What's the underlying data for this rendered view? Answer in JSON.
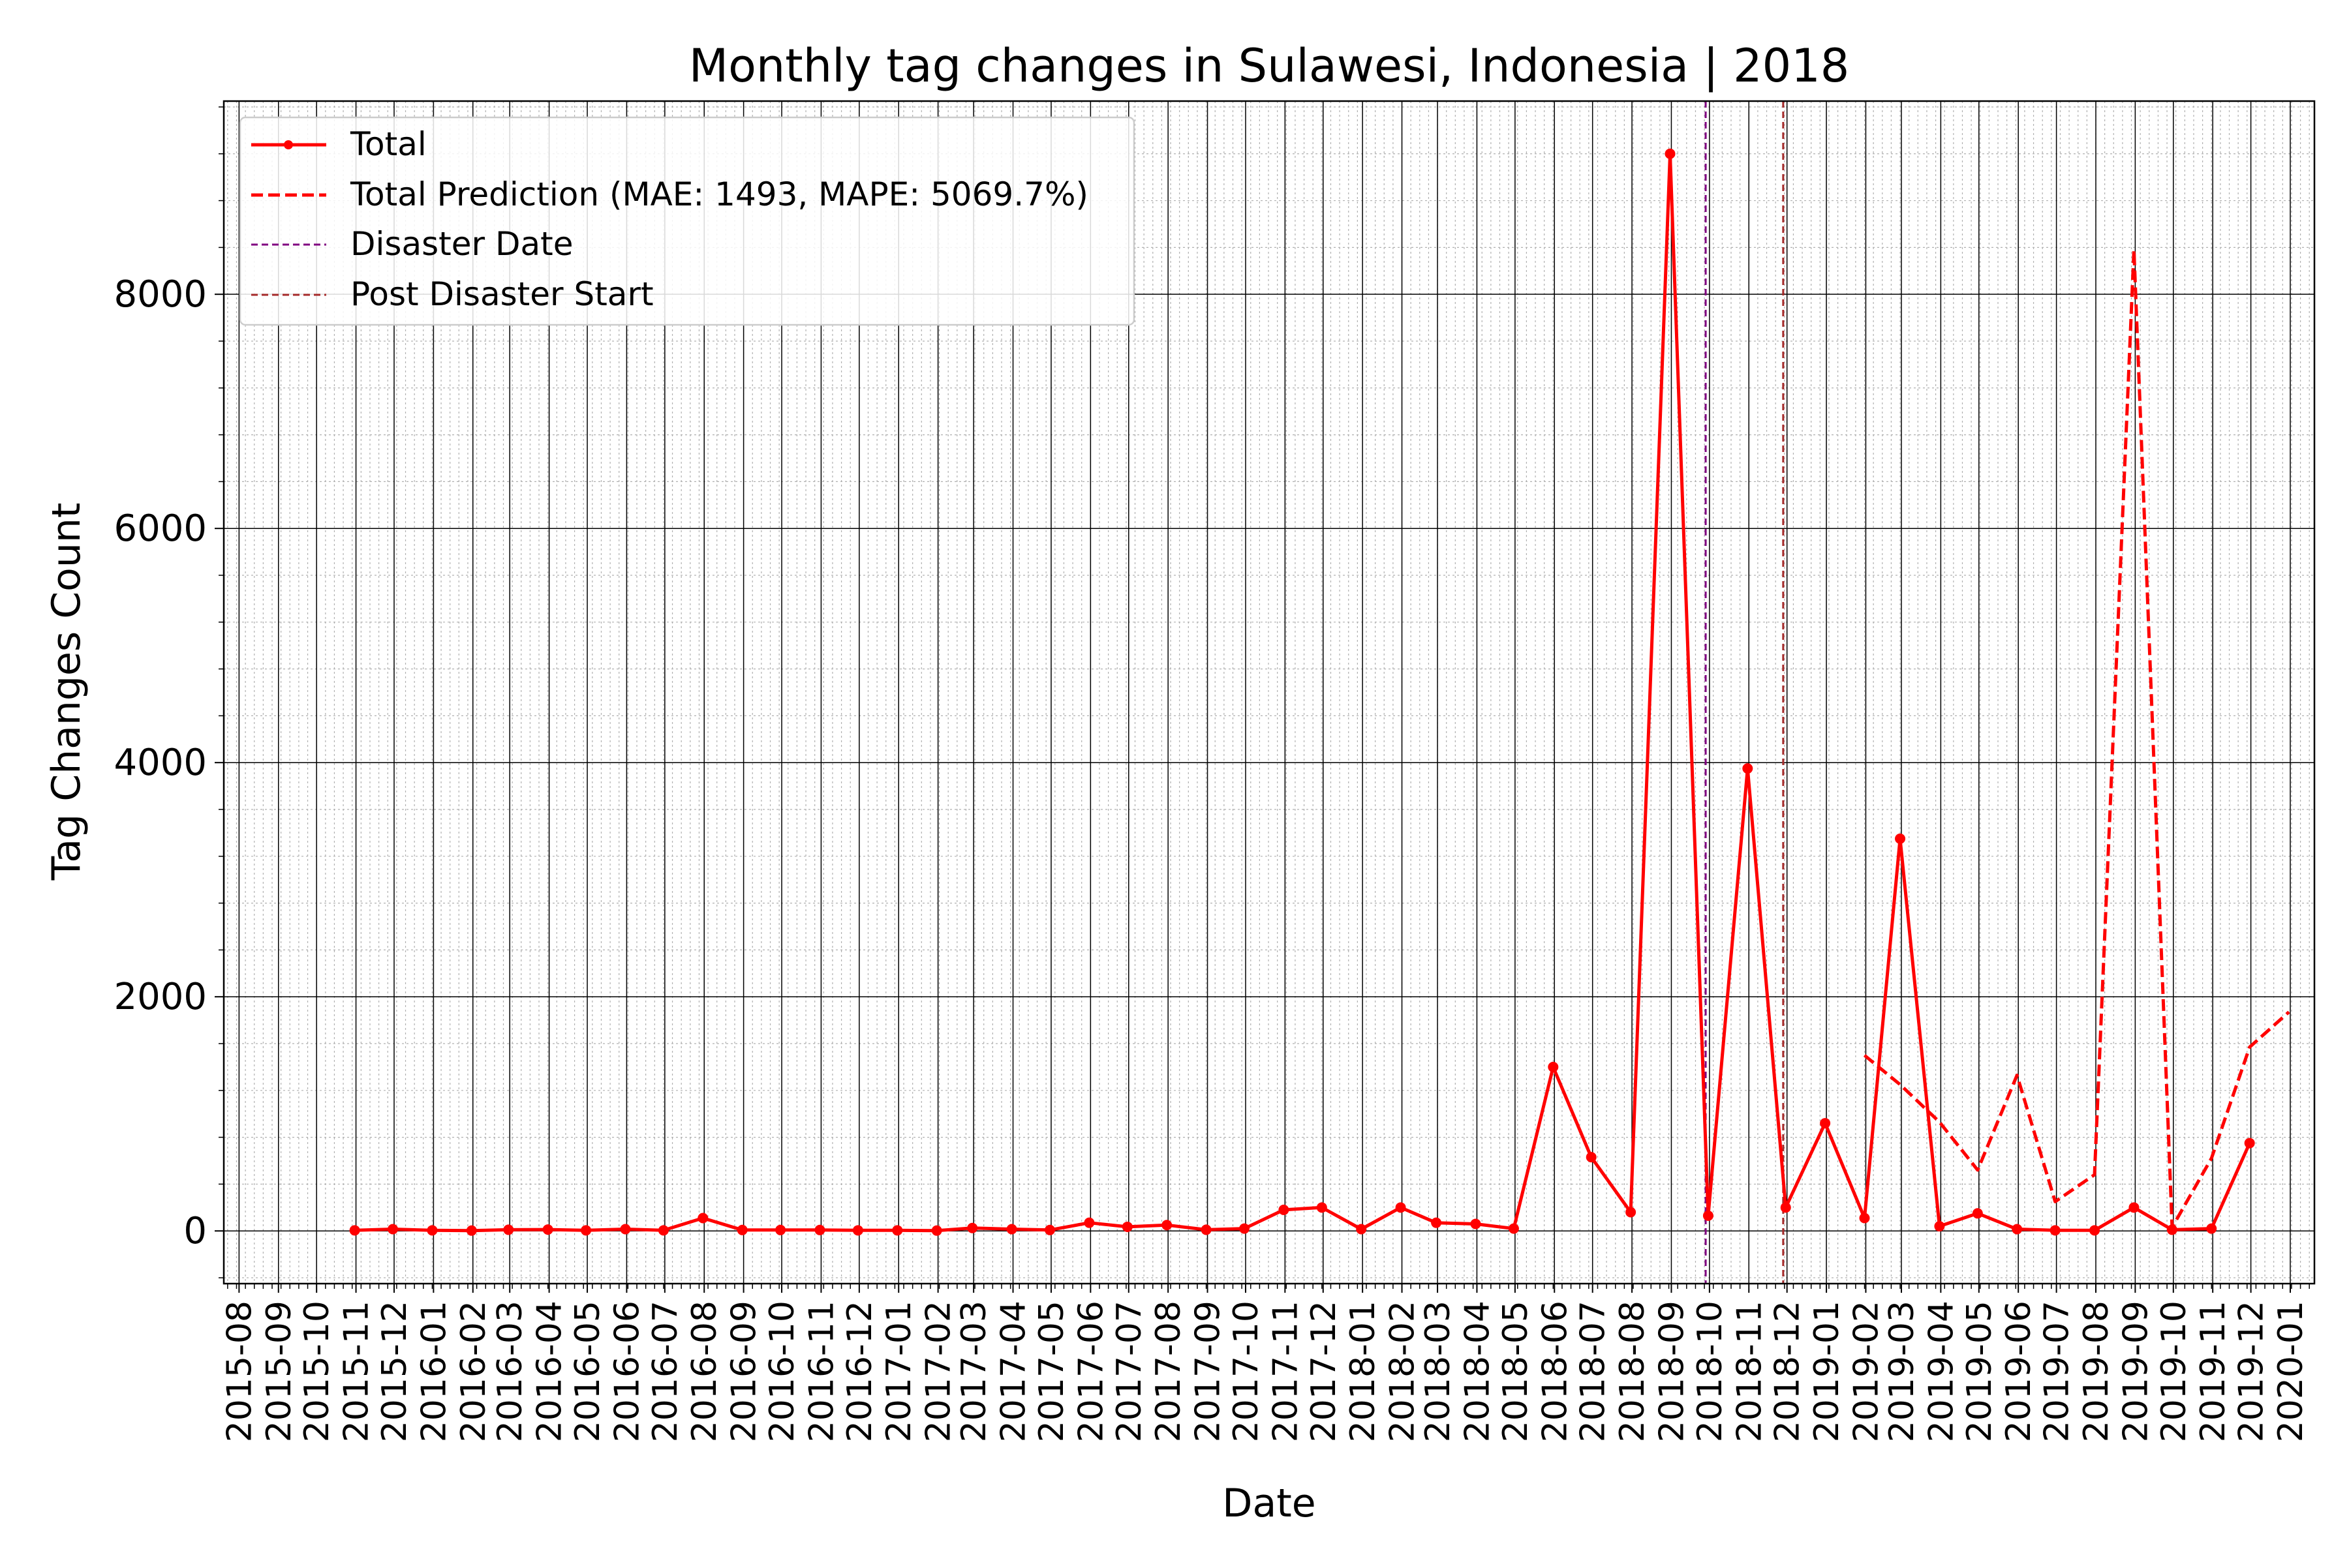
{
  "chart_data": {
    "type": "line",
    "title": "Monthly tag changes in Sulawesi, Indonesia | 2018",
    "xlabel": "Date",
    "ylabel": "Tag Changes Count",
    "x_ticks": [
      "2015-08",
      "2015-09",
      "2015-10",
      "2015-11",
      "2015-12",
      "2016-01",
      "2016-02",
      "2016-03",
      "2016-04",
      "2016-05",
      "2016-06",
      "2016-07",
      "2016-08",
      "2016-09",
      "2016-10",
      "2016-11",
      "2016-12",
      "2017-01",
      "2017-02",
      "2017-03",
      "2017-04",
      "2017-05",
      "2017-06",
      "2017-07",
      "2017-08",
      "2017-09",
      "2017-10",
      "2017-11",
      "2017-12",
      "2018-01",
      "2018-02",
      "2018-03",
      "2018-04",
      "2018-05",
      "2018-06",
      "2018-07",
      "2018-08",
      "2018-09",
      "2018-10",
      "2018-11",
      "2018-12",
      "2019-01",
      "2019-02",
      "2019-03",
      "2019-04",
      "2019-05",
      "2019-06",
      "2019-07",
      "2019-08",
      "2019-09",
      "2019-10",
      "2019-11",
      "2019-12",
      "2020-01"
    ],
    "x_range": [
      "2015-07-20",
      "2020-01-20"
    ],
    "y_ticks": [
      0,
      2000,
      4000,
      6000,
      8000
    ],
    "ylim": [
      -450,
      9650
    ],
    "grid": true,
    "legend_position": "top-left",
    "series": [
      {
        "name": "Total",
        "style": "solid-with-markers",
        "color": "#ff0000",
        "points": [
          {
            "x": "2015-10-31",
            "y": 5
          },
          {
            "x": "2015-11-30",
            "y": 15
          },
          {
            "x": "2015-12-31",
            "y": 5
          },
          {
            "x": "2016-01-31",
            "y": 3
          },
          {
            "x": "2016-02-29",
            "y": 10
          },
          {
            "x": "2016-03-31",
            "y": 12
          },
          {
            "x": "2016-04-30",
            "y": 5
          },
          {
            "x": "2016-05-31",
            "y": 15
          },
          {
            "x": "2016-06-30",
            "y": 5
          },
          {
            "x": "2016-07-31",
            "y": 110
          },
          {
            "x": "2016-08-31",
            "y": 8
          },
          {
            "x": "2016-09-30",
            "y": 8
          },
          {
            "x": "2016-10-31",
            "y": 8
          },
          {
            "x": "2016-11-30",
            "y": 5
          },
          {
            "x": "2016-12-31",
            "y": 5
          },
          {
            "x": "2017-01-31",
            "y": 3
          },
          {
            "x": "2017-02-28",
            "y": 25
          },
          {
            "x": "2017-03-31",
            "y": 15
          },
          {
            "x": "2017-04-30",
            "y": 8
          },
          {
            "x": "2017-05-31",
            "y": 70
          },
          {
            "x": "2017-06-30",
            "y": 35
          },
          {
            "x": "2017-07-31",
            "y": 50
          },
          {
            "x": "2017-08-31",
            "y": 10
          },
          {
            "x": "2017-09-30",
            "y": 20
          },
          {
            "x": "2017-10-31",
            "y": 180
          },
          {
            "x": "2017-11-30",
            "y": 200
          },
          {
            "x": "2017-12-31",
            "y": 15
          },
          {
            "x": "2018-01-31",
            "y": 200
          },
          {
            "x": "2018-02-28",
            "y": 70
          },
          {
            "x": "2018-03-31",
            "y": 60
          },
          {
            "x": "2018-04-30",
            "y": 20
          },
          {
            "x": "2018-05-31",
            "y": 1400
          },
          {
            "x": "2018-06-30",
            "y": 630
          },
          {
            "x": "2018-07-31",
            "y": 160
          },
          {
            "x": "2018-08-31",
            "y": 9200
          },
          {
            "x": "2018-09-30",
            "y": 130
          },
          {
            "x": "2018-10-31",
            "y": 3950
          },
          {
            "x": "2018-11-30",
            "y": 200
          },
          {
            "x": "2018-12-31",
            "y": 920
          },
          {
            "x": "2019-01-31",
            "y": 110
          },
          {
            "x": "2019-02-28",
            "y": 3350
          },
          {
            "x": "2019-03-31",
            "y": 40
          },
          {
            "x": "2019-04-30",
            "y": 150
          },
          {
            "x": "2019-05-31",
            "y": 15
          },
          {
            "x": "2019-06-30",
            "y": 5
          },
          {
            "x": "2019-07-31",
            "y": 5
          },
          {
            "x": "2019-08-31",
            "y": 200
          },
          {
            "x": "2019-09-30",
            "y": 10
          },
          {
            "x": "2019-10-31",
            "y": 20
          },
          {
            "x": "2019-11-30",
            "y": 750
          }
        ]
      },
      {
        "name": "Total Prediction (MAE: 1493, MAPE: 5069.7%)",
        "style": "dashed",
        "color": "#ff0000",
        "points": [
          {
            "x": "2019-01-31",
            "y": 1500
          },
          {
            "x": "2019-02-28",
            "y": 1250
          },
          {
            "x": "2019-03-31",
            "y": 930
          },
          {
            "x": "2019-04-30",
            "y": 520
          },
          {
            "x": "2019-05-31",
            "y": 1330
          },
          {
            "x": "2019-06-30",
            "y": 250
          },
          {
            "x": "2019-07-31",
            "y": 480
          },
          {
            "x": "2019-08-31",
            "y": 8380
          },
          {
            "x": "2019-09-30",
            "y": 30
          },
          {
            "x": "2019-10-31",
            "y": 620
          },
          {
            "x": "2019-11-30",
            "y": 1570
          },
          {
            "x": "2019-12-31",
            "y": 1870
          }
        ]
      }
    ],
    "vertical_lines": [
      {
        "name": "Disaster Date",
        "x": "2018-09-28",
        "color": "#800080",
        "style": "dashed"
      },
      {
        "name": "Post Disaster Start",
        "x": "2018-11-28",
        "color": "#a52a2a",
        "style": "dashed"
      }
    ]
  }
}
